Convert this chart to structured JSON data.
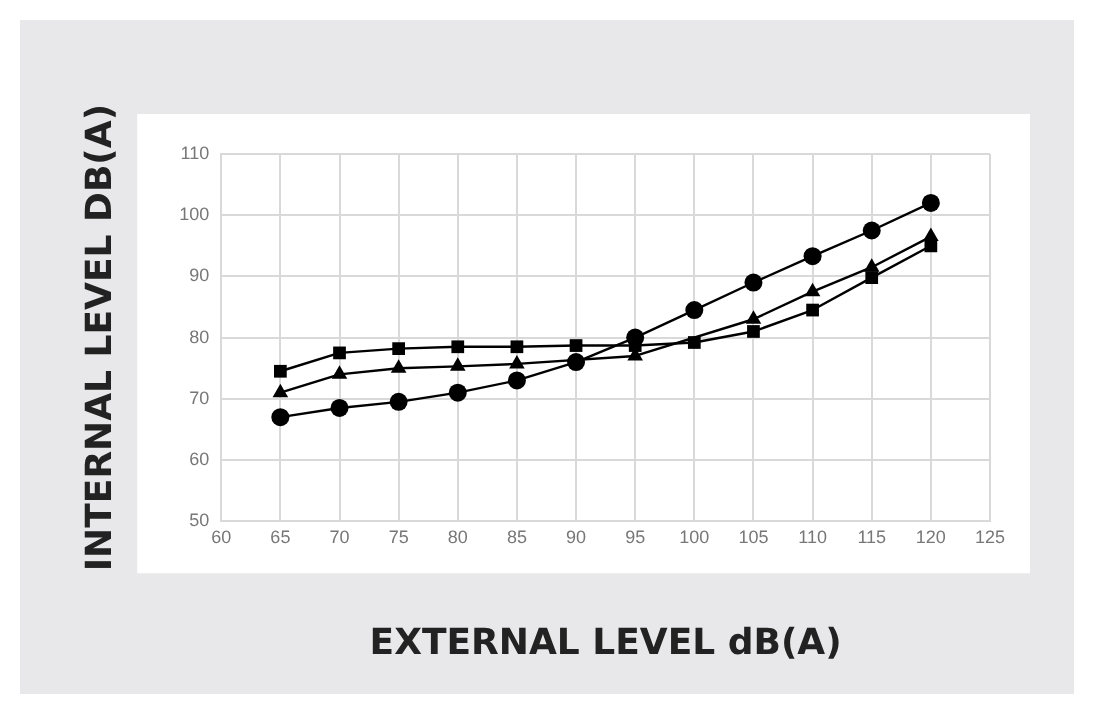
{
  "chart_data": {
    "type": "line",
    "xlabel": "EXTERNAL LEVEL dB(A)",
    "ylabel": "INTERNAL LEVEL DB(A)",
    "x": [
      65,
      70,
      75,
      80,
      85,
      90,
      95,
      100,
      105,
      110,
      115,
      120
    ],
    "series": [
      {
        "color": "#000000",
        "marker": "square",
        "values": [
          74.5,
          77.5,
          78.2,
          78.5,
          78.5,
          78.7,
          78.7,
          79.2,
          81,
          84.5,
          89.8,
          95
        ]
      },
      {
        "color": "#000000",
        "marker": "triangle",
        "values": [
          71,
          74,
          75,
          75.3,
          75.7,
          null,
          77,
          null,
          83,
          87.5,
          91.5,
          96.5
        ]
      },
      {
        "color": "#000000",
        "marker": "circle",
        "values": [
          67,
          68.5,
          69.5,
          71,
          73,
          76,
          80,
          84.5,
          89,
          93.3,
          97.5,
          102
        ]
      }
    ],
    "xlim": [
      60,
      125
    ],
    "xticks": [
      60,
      65,
      70,
      75,
      80,
      85,
      90,
      95,
      100,
      105,
      110,
      115,
      120,
      125
    ],
    "ylim": [
      50,
      110
    ],
    "yticks": [
      50,
      60,
      70,
      80,
      90,
      100,
      110
    ],
    "grid": true,
    "legend": false,
    "line_style": "solid"
  }
}
